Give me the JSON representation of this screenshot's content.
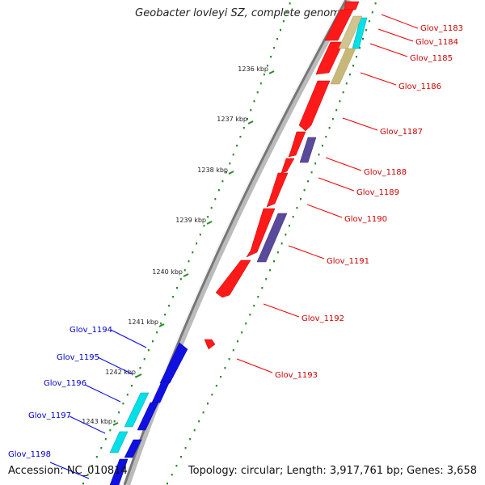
{
  "title": "Geobacter lovleyi SZ, complete genome",
  "accession": "Accession: NC_010814",
  "topology": "Topology: circular; Length: 3,917,761 bp; Genes: 3,658",
  "colors": {
    "backbone": "#888888",
    "forward_gene": "#ff0000",
    "reverse_gene": "#0000dd",
    "rna": "#00e0e0",
    "olive": "#c8b878",
    "purple": "#5a4a9a",
    "scale_dots": "#2a8a2a",
    "forward_label": "#cc0000",
    "reverse_label": "#0000cc"
  },
  "kbp_ticks": [
    "1236 kbp",
    "1237 kbp",
    "1238 kbp",
    "1239 kbp",
    "1240 kbp",
    "1241 kbp",
    "1242 kbp",
    "1243 kbp"
  ],
  "forward_genes": [
    "Glov_1183",
    "Glov_1184",
    "Glov_1185",
    "Glov_1186",
    "Glov_1187",
    "Glov_1188",
    "Glov_1189",
    "Glov_1190",
    "Glov_1191",
    "Glov_1192",
    "Glov_1193"
  ],
  "reverse_genes": [
    "Glov_1194",
    "Glov_1195",
    "Glov_1196",
    "Glov_1197",
    "Glov_1198"
  ]
}
